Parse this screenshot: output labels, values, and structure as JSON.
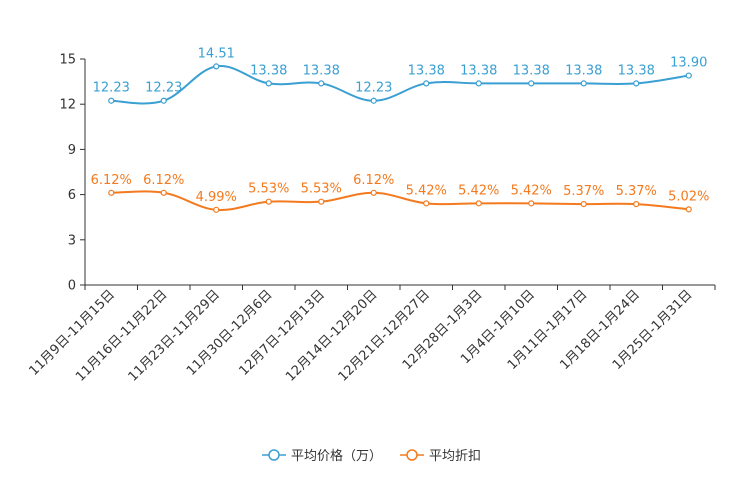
{
  "chart_data": {
    "type": "line",
    "title": "",
    "xlabel": "",
    "ylabel": "",
    "ylim": [
      0,
      15
    ],
    "yticks": [
      0,
      3,
      6,
      9,
      12,
      15
    ],
    "categories": [
      "11月9日-11月15日",
      "11月16日-11月22日",
      "11月23日-11月29日",
      "11月30日-12月6日",
      "12月7日-12月13日",
      "12月14日-12月20日",
      "12月21日-12月27日",
      "12月28日-1月3日",
      "1月4日-1月10日",
      "1月11日-1月17日",
      "1月18日-1月24日",
      "1月25日-1月31日"
    ],
    "series": [
      {
        "name": "平均价格（万）",
        "color": "#3a9fd3",
        "values": [
          12.23,
          12.23,
          14.51,
          13.38,
          13.38,
          12.23,
          13.38,
          13.38,
          13.38,
          13.38,
          13.38,
          13.9
        ],
        "labels": [
          "12.23",
          "12.23",
          "14.51",
          "13.38",
          "13.38",
          "12.23",
          "13.38",
          "13.38",
          "13.38",
          "13.38",
          "13.38",
          "13.90"
        ]
      },
      {
        "name": "平均折扣",
        "color": "#f47a1f",
        "values": [
          6.12,
          6.12,
          4.99,
          5.53,
          5.53,
          6.12,
          5.42,
          5.42,
          5.42,
          5.37,
          5.37,
          5.02
        ],
        "labels": [
          "6.12%",
          "6.12%",
          "4.99%",
          "5.53%",
          "5.53%",
          "6.12%",
          "5.42%",
          "5.42%",
          "5.42%",
          "5.37%",
          "5.37%",
          "5.02%"
        ]
      }
    ],
    "legend_position": "bottom-center",
    "grid": false
  }
}
